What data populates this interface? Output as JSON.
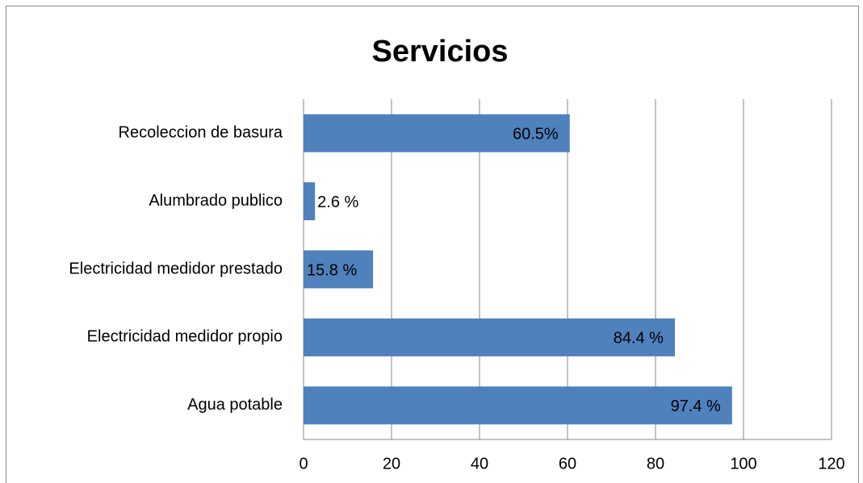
{
  "chart_data": {
    "type": "bar",
    "orientation": "horizontal",
    "title": "Servicios",
    "categories": [
      "Recoleccion de basura",
      "Alumbrado publico",
      "Electricidad medidor prestado",
      "Electricidad medidor propio",
      "Agua potable"
    ],
    "values": [
      60.5,
      2.6,
      15.8,
      84.4,
      97.4
    ],
    "value_labels": [
      "60.5%",
      "2.6 %",
      "15.8 %",
      "84.4 %",
      "97.4 %"
    ],
    "color": "#4f81bd",
    "xlim": [
      0,
      120
    ],
    "xticks": [
      0,
      20,
      40,
      60,
      80,
      100,
      120
    ],
    "grid": true
  }
}
